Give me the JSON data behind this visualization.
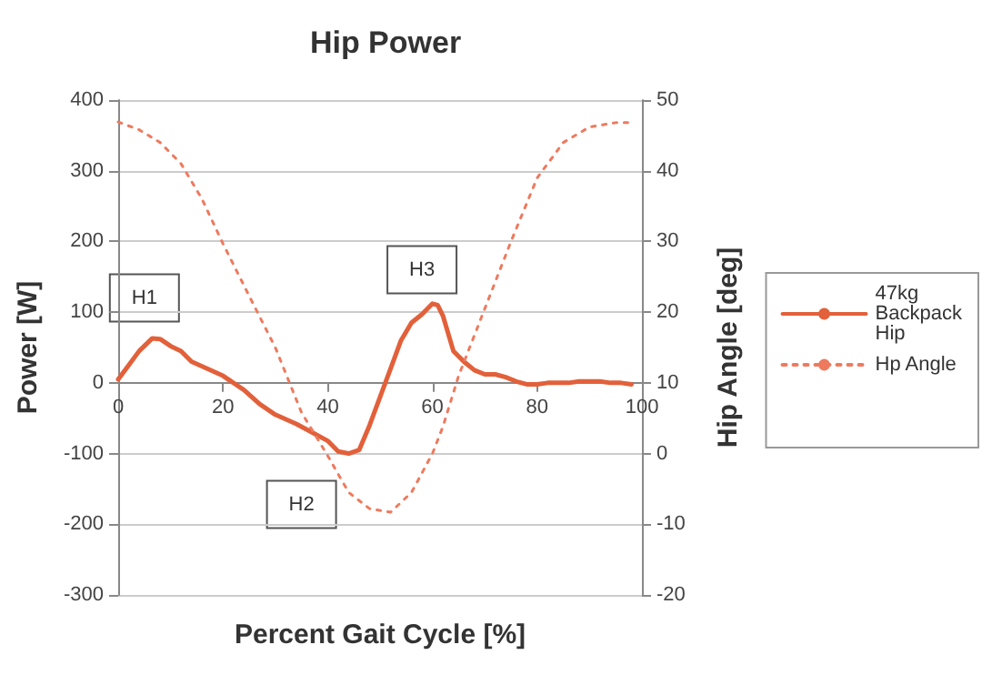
{
  "chart_data": {
    "type": "line",
    "title": "Hip Power",
    "xlabel": "Percent Gait Cycle [%]",
    "ylabel": "Power [W]",
    "y2label": "Hip Angle [deg]",
    "xlim": [
      0,
      100
    ],
    "xticks": [
      0,
      20,
      40,
      60,
      80,
      100
    ],
    "ylim": [
      -300,
      400
    ],
    "yticks": [
      -300,
      -200,
      -100,
      0,
      100,
      200,
      300,
      400
    ],
    "y2lim": [
      -20,
      50
    ],
    "y2ticks": [
      -20,
      -10,
      0,
      10,
      20,
      30,
      40,
      50
    ],
    "grid": "y",
    "legend": "right",
    "marker": "none",
    "annotations": [
      {
        "text": "H1",
        "x": 5,
        "y": 120
      },
      {
        "text": "H2",
        "x": 35,
        "y": -172
      },
      {
        "text": "H3",
        "x": 58,
        "y": 160
      }
    ],
    "series": [
      {
        "name": "47kg Backpack Hip",
        "color": "#e2603a",
        "line_style": "solid",
        "x": [
          0,
          2,
          4,
          6.5,
          8,
          10,
          12,
          14,
          17,
          20,
          24,
          27,
          30,
          34,
          37,
          40,
          42,
          44,
          46,
          48,
          50,
          52,
          54,
          56,
          58,
          60,
          61,
          62,
          64,
          66,
          68,
          70,
          72,
          74,
          76,
          78,
          80,
          82,
          86,
          88,
          92,
          94,
          96,
          98
        ],
        "values": [
          5,
          25,
          45,
          63,
          62,
          52,
          45,
          30,
          20,
          10,
          -10,
          -30,
          -45,
          -58,
          -70,
          -82,
          -97,
          -100,
          -95,
          -60,
          -20,
          20,
          60,
          85,
          97,
          112,
          110,
          95,
          45,
          30,
          18,
          12,
          12,
          8,
          2,
          -2,
          -2,
          0,
          0,
          2,
          2,
          0,
          0,
          -2
        ]
      },
      {
        "name": "Hp Angle",
        "color": "#ee7a5e",
        "line_style": "dotted",
        "axis": "y2",
        "x": [
          0,
          4,
          8,
          12,
          16,
          20,
          25,
          30,
          35,
          40,
          44,
          48,
          52,
          56,
          60,
          62,
          65,
          70,
          75,
          80,
          85,
          90,
          95,
          98
        ],
        "values": [
          46.9,
          45.8,
          44,
          41,
          36,
          29.7,
          22.3,
          15,
          5.8,
          -0.3,
          -5.5,
          -7.8,
          -8.3,
          -5.5,
          0,
          3.8,
          11,
          20.5,
          30,
          39,
          44,
          46.2,
          46.8,
          46.8
        ]
      }
    ]
  }
}
